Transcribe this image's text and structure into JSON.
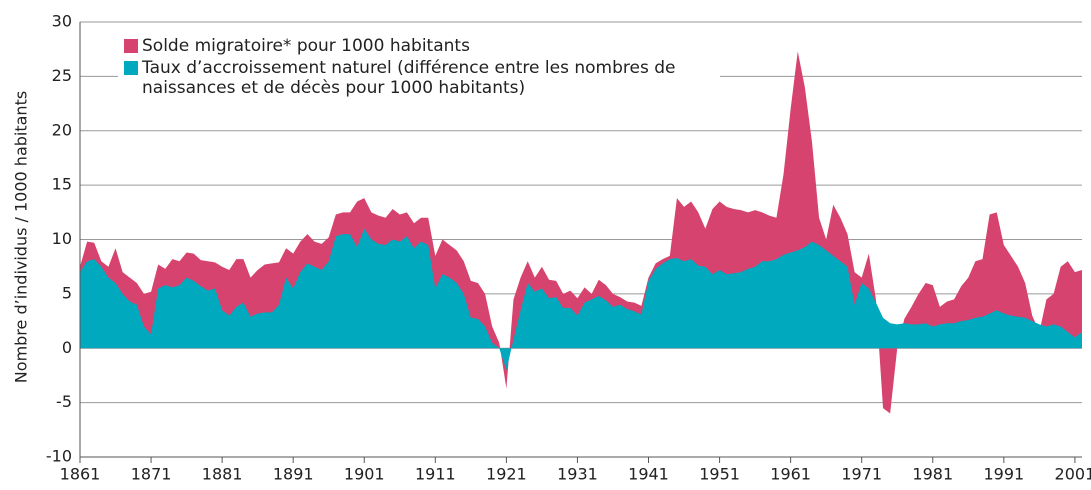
{
  "chart_data": {
    "type": "stacked_area",
    "y_label": "Nombre d’individus / 1000 habitants",
    "x": [
      1861,
      1862,
      1863,
      1864,
      1865,
      1866,
      1867,
      1868,
      1869,
      1870,
      1871,
      1872,
      1873,
      1874,
      1875,
      1876,
      1877,
      1878,
      1879,
      1880,
      1881,
      1882,
      1883,
      1884,
      1885,
      1886,
      1887,
      1888,
      1889,
      1890,
      1891,
      1892,
      1893,
      1894,
      1895,
      1896,
      1897,
      1898,
      1899,
      1900,
      1901,
      1902,
      1903,
      1904,
      1905,
      1906,
      1907,
      1908,
      1909,
      1910,
      1911,
      1912,
      1913,
      1914,
      1915,
      1916,
      1917,
      1918,
      1919,
      1920,
      1921,
      1922,
      1923,
      1924,
      1925,
      1926,
      1927,
      1928,
      1929,
      1930,
      1931,
      1932,
      1933,
      1934,
      1935,
      1936,
      1937,
      1938,
      1939,
      1940,
      1941,
      1942,
      1943,
      1944,
      1945,
      1946,
      1947,
      1948,
      1949,
      1950,
      1951,
      1952,
      1953,
      1954,
      1955,
      1956,
      1957,
      1958,
      1959,
      1960,
      1961,
      1962,
      1963,
      1964,
      1965,
      1966,
      1967,
      1968,
      1969,
      1970,
      1971,
      1972,
      1973,
      1974,
      1975,
      1976,
      1977,
      1978,
      1979,
      1980,
      1981,
      1982,
      1983,
      1984,
      1985,
      1986,
      1987,
      1988,
      1989,
      1990,
      1991,
      1992,
      1993,
      1994,
      1995,
      1996,
      1997,
      1998,
      1999,
      2000,
      2001,
      2002
    ],
    "series": [
      {
        "name": "Taux d’accroissement naturel (différence entre les nombres de naissances et de décès pour 1000 habitants)",
        "color": "#00a9be",
        "values": [
          7.0,
          8.0,
          8.2,
          7.5,
          6.5,
          6.0,
          5.0,
          4.3,
          4.0,
          2.0,
          1.3,
          5.5,
          5.8,
          5.6,
          5.8,
          6.5,
          6.2,
          5.7,
          5.3,
          5.5,
          3.5,
          3.0,
          3.8,
          4.2,
          2.9,
          3.2,
          3.3,
          3.3,
          4.0,
          6.5,
          5.5,
          7.0,
          7.8,
          7.5,
          7.2,
          8.0,
          10.3,
          10.5,
          10.5,
          9.3,
          11.0,
          10.0,
          9.6,
          9.5,
          10.0,
          9.8,
          10.3,
          9.2,
          9.8,
          9.5,
          5.5,
          6.8,
          6.5,
          6.0,
          5.0,
          2.8,
          2.7,
          2.0,
          0.5,
          0.0,
          -2.0,
          0.8,
          3.5,
          6.0,
          5.2,
          5.5,
          4.6,
          4.7,
          3.7,
          3.7,
          3.0,
          4.2,
          4.5,
          4.8,
          4.4,
          3.8,
          4.0,
          3.6,
          3.4,
          3.1,
          6.2,
          7.3,
          7.8,
          8.2,
          8.3,
          8.0,
          8.2,
          7.6,
          7.5,
          6.8,
          7.2,
          6.8,
          6.9,
          7.0,
          7.3,
          7.5,
          8.0,
          8.0,
          8.2,
          8.6,
          8.8,
          9.0,
          9.3,
          9.8,
          9.5,
          9.0,
          8.5,
          8.0,
          7.5,
          4.0,
          6.0,
          5.5,
          4.2,
          2.8,
          2.3,
          2.2,
          2.3,
          2.2,
          2.2,
          2.3,
          2.0,
          2.2,
          2.3,
          2.3,
          2.5,
          2.6,
          2.8,
          2.9,
          3.2,
          3.5,
          3.2,
          3.0,
          2.9,
          2.8,
          2.5,
          2.2,
          2.0,
          2.2,
          2.0,
          1.5,
          1.0,
          1.5
        ]
      },
      {
        "name": "Solde migratoire* pour 1000 habitants",
        "color": "#d6436e",
        "values": [
          0.5,
          1.8,
          1.5,
          0.5,
          1.0,
          3.2,
          2.0,
          2.2,
          2.0,
          3.0,
          3.9,
          2.2,
          1.5,
          2.6,
          2.2,
          2.3,
          2.5,
          2.4,
          2.7,
          2.4,
          4.0,
          4.2,
          4.4,
          4.0,
          3.6,
          4.0,
          4.4,
          4.5,
          3.9,
          2.7,
          3.2,
          2.8,
          2.7,
          2.3,
          2.4,
          2.2,
          2.0,
          2.0,
          2.0,
          4.2,
          2.8,
          2.5,
          2.6,
          2.5,
          2.8,
          2.5,
          2.2,
          2.3,
          2.2,
          2.5,
          3.0,
          3.2,
          3.0,
          3.0,
          3.0,
          3.4,
          3.3,
          3.0,
          1.5,
          0.5,
          -1.7,
          3.7,
          3.0,
          2.0,
          1.3,
          2.0,
          1.7,
          1.5,
          1.3,
          1.6,
          1.6,
          1.4,
          0.5,
          1.5,
          1.4,
          1.2,
          0.7,
          0.7,
          0.8,
          0.8,
          0.3,
          0.5,
          0.4,
          0.3,
          5.5,
          5.0,
          5.3,
          4.9,
          3.5,
          6.0,
          6.3,
          6.2,
          5.9,
          5.7,
          5.2,
          5.2,
          4.5,
          4.2,
          3.8,
          7.4,
          13.2,
          18.3,
          14.7,
          9.2,
          2.5,
          1.0,
          4.7,
          4.0,
          3.0,
          3.0,
          0.5,
          3.2,
          0.3,
          -8.3,
          -8.3,
          -2.2,
          0.4,
          1.6,
          2.8,
          3.7,
          3.8,
          1.6,
          2.0,
          2.2,
          3.2,
          3.9,
          5.2,
          5.3,
          9.1,
          9.0,
          6.3,
          5.5,
          4.6,
          3.2,
          0.5,
          -0.7,
          2.5,
          2.8,
          5.5,
          6.5,
          6.0,
          5.7
        ]
      }
    ],
    "xlim": [
      1861,
      2002
    ],
    "xticks": [
      1861,
      1871,
      1881,
      1891,
      1901,
      1911,
      1921,
      1931,
      1941,
      1951,
      1961,
      1971,
      1981,
      1991,
      2001
    ],
    "ylim": [
      -10,
      30
    ],
    "yticks": [
      -10,
      -5,
      0,
      5,
      10,
      15,
      20,
      25,
      30
    ],
    "grid": true,
    "legend": "top-left"
  }
}
